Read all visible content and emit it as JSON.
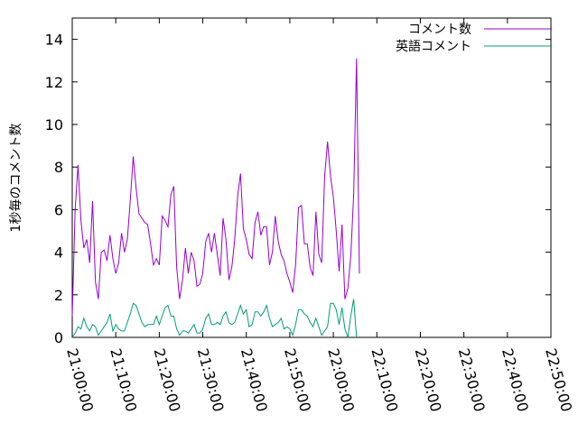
{
  "chart_data": {
    "type": "line",
    "ylabel": "1秒毎のコメント数",
    "xlabel": "",
    "ylim": [
      0,
      15
    ],
    "y_ticks": [
      0,
      2,
      4,
      6,
      8,
      10,
      12,
      14
    ],
    "x_range": [
      "21:00:00",
      "22:50:00"
    ],
    "x_tick_labels": [
      "21:00:00",
      "21:10:00",
      "21:20:00",
      "21:30:00",
      "21:40:00",
      "21:50:00",
      "22:00:00",
      "22:10:00",
      "22:20:00",
      "22:30:00",
      "22:40:00",
      "22:50:00"
    ],
    "grid": false,
    "legend_position": "top-right",
    "series": [
      {
        "name": "コメント数",
        "color": "#9400d3",
        "points": [
          [
            "21:00:00",
            1.0
          ],
          [
            "21:00:40",
            6.0
          ],
          [
            "21:01:20",
            8.1
          ],
          [
            "21:02:00",
            5.5
          ],
          [
            "21:02:40",
            4.2
          ],
          [
            "21:03:20",
            4.6
          ],
          [
            "21:04:00",
            3.5
          ],
          [
            "21:04:40",
            6.4
          ],
          [
            "21:05:20",
            2.6
          ],
          [
            "21:06:00",
            1.8
          ],
          [
            "21:06:40",
            4.0
          ],
          [
            "21:07:20",
            4.1
          ],
          [
            "21:08:00",
            3.6
          ],
          [
            "21:08:40",
            4.8
          ],
          [
            "21:09:20",
            3.7
          ],
          [
            "21:10:00",
            3.0
          ],
          [
            "21:10:40",
            3.5
          ],
          [
            "21:11:20",
            4.9
          ],
          [
            "21:12:00",
            4.0
          ],
          [
            "21:12:40",
            4.6
          ],
          [
            "21:13:20",
            6.4
          ],
          [
            "21:14:00",
            8.5
          ],
          [
            "21:14:40",
            7.0
          ],
          [
            "21:15:20",
            5.8
          ],
          [
            "21:16:00",
            5.6
          ],
          [
            "21:16:40",
            5.4
          ],
          [
            "21:17:20",
            5.3
          ],
          [
            "21:18:00",
            4.4
          ],
          [
            "21:18:40",
            3.4
          ],
          [
            "21:19:20",
            3.7
          ],
          [
            "21:20:00",
            3.4
          ],
          [
            "21:20:40",
            5.7
          ],
          [
            "21:21:20",
            5.5
          ],
          [
            "21:22:00",
            5.2
          ],
          [
            "21:22:40",
            6.7
          ],
          [
            "21:23:20",
            7.1
          ],
          [
            "21:24:00",
            3.3
          ],
          [
            "21:24:40",
            1.8
          ],
          [
            "21:25:20",
            2.7
          ],
          [
            "21:26:00",
            4.2
          ],
          [
            "21:26:40",
            3.0
          ],
          [
            "21:27:20",
            4.0
          ],
          [
            "21:28:00",
            3.6
          ],
          [
            "21:28:40",
            2.4
          ],
          [
            "21:29:20",
            2.5
          ],
          [
            "21:30:00",
            3.0
          ],
          [
            "21:30:40",
            4.5
          ],
          [
            "21:31:20",
            4.9
          ],
          [
            "21:32:00",
            4.0
          ],
          [
            "21:32:40",
            4.9
          ],
          [
            "21:33:20",
            3.9
          ],
          [
            "21:34:00",
            2.9
          ],
          [
            "21:34:40",
            5.6
          ],
          [
            "21:35:20",
            4.6
          ],
          [
            "21:36:00",
            2.7
          ],
          [
            "21:36:40",
            3.3
          ],
          [
            "21:37:20",
            4.6
          ],
          [
            "21:38:00",
            6.6
          ],
          [
            "21:38:40",
            7.7
          ],
          [
            "21:39:20",
            5.1
          ],
          [
            "21:40:00",
            4.6
          ],
          [
            "21:40:40",
            3.9
          ],
          [
            "21:41:20",
            3.7
          ],
          [
            "21:42:00",
            5.4
          ],
          [
            "21:42:40",
            5.9
          ],
          [
            "21:43:20",
            4.8
          ],
          [
            "21:44:00",
            5.2
          ],
          [
            "21:44:40",
            5.2
          ],
          [
            "21:45:20",
            3.4
          ],
          [
            "21:46:00",
            4.0
          ],
          [
            "21:46:40",
            5.7
          ],
          [
            "21:47:20",
            4.5
          ],
          [
            "21:48:00",
            3.9
          ],
          [
            "21:48:40",
            3.6
          ],
          [
            "21:49:20",
            3.0
          ],
          [
            "21:50:00",
            2.6
          ],
          [
            "21:50:40",
            2.1
          ],
          [
            "21:51:20",
            3.4
          ],
          [
            "21:52:00",
            6.1
          ],
          [
            "21:52:40",
            6.2
          ],
          [
            "21:53:20",
            4.4
          ],
          [
            "21:54:00",
            4.4
          ],
          [
            "21:54:40",
            3.3
          ],
          [
            "21:55:20",
            2.9
          ],
          [
            "21:56:00",
            5.9
          ],
          [
            "21:56:40",
            3.9
          ],
          [
            "21:57:20",
            3.5
          ],
          [
            "21:58:00",
            7.6
          ],
          [
            "21:58:40",
            9.2
          ],
          [
            "21:59:20",
            7.6
          ],
          [
            "22:00:00",
            6.6
          ],
          [
            "22:00:40",
            5.0
          ],
          [
            "22:01:20",
            3.1
          ],
          [
            "22:02:00",
            5.3
          ],
          [
            "22:02:40",
            1.8
          ],
          [
            "22:03:20",
            2.3
          ],
          [
            "22:04:00",
            3.8
          ],
          [
            "22:04:40",
            6.7
          ],
          [
            "22:05:20",
            13.1
          ],
          [
            "22:06:00",
            3.0
          ]
        ]
      },
      {
        "name": "英語コメント",
        "color": "#009e73",
        "points": [
          [
            "21:00:00",
            0.0
          ],
          [
            "21:00:40",
            0.2
          ],
          [
            "21:01:20",
            0.5
          ],
          [
            "21:02:00",
            0.4
          ],
          [
            "21:02:40",
            0.9
          ],
          [
            "21:03:20",
            0.5
          ],
          [
            "21:04:00",
            0.3
          ],
          [
            "21:04:40",
            0.6
          ],
          [
            "21:05:20",
            0.5
          ],
          [
            "21:06:00",
            0.1
          ],
          [
            "21:06:40",
            0.3
          ],
          [
            "21:07:20",
            0.5
          ],
          [
            "21:08:00",
            0.7
          ],
          [
            "21:08:40",
            1.1
          ],
          [
            "21:09:20",
            0.3
          ],
          [
            "21:10:00",
            0.6
          ],
          [
            "21:10:40",
            0.4
          ],
          [
            "21:11:20",
            0.3
          ],
          [
            "21:12:00",
            0.3
          ],
          [
            "21:12:40",
            0.7
          ],
          [
            "21:13:20",
            1.1
          ],
          [
            "21:14:00",
            1.6
          ],
          [
            "21:14:40",
            1.5
          ],
          [
            "21:15:20",
            1.1
          ],
          [
            "21:16:00",
            0.7
          ],
          [
            "21:16:40",
            0.5
          ],
          [
            "21:17:20",
            0.6
          ],
          [
            "21:18:00",
            0.6
          ],
          [
            "21:18:40",
            0.6
          ],
          [
            "21:19:20",
            1.0
          ],
          [
            "21:20:00",
            0.6
          ],
          [
            "21:20:40",
            1.0
          ],
          [
            "21:21:20",
            1.4
          ],
          [
            "21:22:00",
            1.5
          ],
          [
            "21:22:40",
            1.0
          ],
          [
            "21:23:20",
            1.0
          ],
          [
            "21:24:00",
            0.4
          ],
          [
            "21:24:40",
            0.1
          ],
          [
            "21:25:20",
            0.3
          ],
          [
            "21:26:00",
            0.3
          ],
          [
            "21:26:40",
            0.2
          ],
          [
            "21:27:20",
            0.4
          ],
          [
            "21:28:00",
            0.6
          ],
          [
            "21:28:40",
            0.2
          ],
          [
            "21:29:20",
            0.2
          ],
          [
            "21:30:00",
            0.4
          ],
          [
            "21:30:40",
            0.9
          ],
          [
            "21:31:20",
            1.1
          ],
          [
            "21:32:00",
            0.6
          ],
          [
            "21:32:40",
            0.6
          ],
          [
            "21:33:20",
            0.7
          ],
          [
            "21:34:00",
            0.6
          ],
          [
            "21:34:40",
            1.0
          ],
          [
            "21:35:20",
            1.2
          ],
          [
            "21:36:00",
            0.7
          ],
          [
            "21:36:40",
            0.6
          ],
          [
            "21:37:20",
            0.7
          ],
          [
            "21:38:00",
            1.1
          ],
          [
            "21:38:40",
            1.5
          ],
          [
            "21:39:20",
            1.1
          ],
          [
            "21:40:00",
            1.3
          ],
          [
            "21:40:40",
            0.5
          ],
          [
            "21:41:20",
            0.6
          ],
          [
            "21:42:00",
            1.2
          ],
          [
            "21:42:40",
            1.2
          ],
          [
            "21:43:20",
            1.0
          ],
          [
            "21:44:00",
            1.2
          ],
          [
            "21:44:40",
            1.5
          ],
          [
            "21:45:20",
            0.9
          ],
          [
            "21:46:00",
            0.5
          ],
          [
            "21:46:40",
            0.6
          ],
          [
            "21:47:20",
            0.7
          ],
          [
            "21:48:00",
            0.9
          ],
          [
            "21:48:40",
            0.4
          ],
          [
            "21:49:20",
            0.5
          ],
          [
            "21:50:00",
            0.4
          ],
          [
            "21:50:40",
            0.1
          ],
          [
            "21:51:20",
            0.6
          ],
          [
            "21:52:00",
            1.3
          ],
          [
            "21:52:40",
            1.3
          ],
          [
            "21:53:20",
            1.1
          ],
          [
            "21:54:00",
            1.0
          ],
          [
            "21:54:40",
            0.7
          ],
          [
            "21:55:20",
            0.5
          ],
          [
            "21:56:00",
            0.9
          ],
          [
            "21:56:40",
            0.5
          ],
          [
            "21:57:20",
            0.1
          ],
          [
            "21:58:00",
            0.3
          ],
          [
            "21:58:40",
            0.5
          ],
          [
            "21:59:20",
            1.6
          ],
          [
            "22:00:00",
            1.6
          ],
          [
            "22:00:40",
            1.3
          ],
          [
            "22:01:20",
            0.6
          ],
          [
            "22:02:00",
            1.4
          ],
          [
            "22:02:40",
            0.4
          ],
          [
            "22:03:20",
            0.0
          ],
          [
            "22:04:00",
            1.0
          ],
          [
            "22:04:40",
            1.8
          ],
          [
            "22:05:20",
            0.0
          ]
        ]
      }
    ]
  }
}
